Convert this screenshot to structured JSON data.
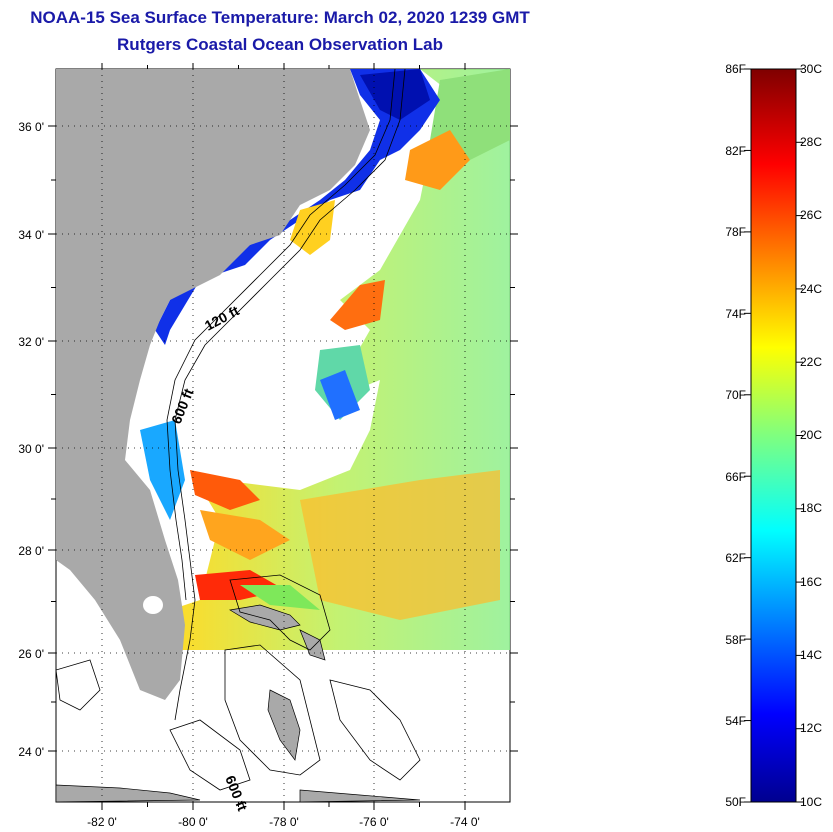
{
  "map": {
    "title": "NOAA-15 Sea Surface Temperature:  March 02, 2020 1239 GMT",
    "subtitle": "Rutgers Coastal Ocean Observation Lab",
    "lon_ticks": [
      "-82 0'",
      "-80 0'",
      "-78 0'",
      "-76 0'",
      "-74 0'"
    ],
    "lat_ticks": [
      "36 0'",
      "34 0'",
      "32 0'",
      "30 0'",
      "28 0'",
      "26 0'",
      "24 0'"
    ],
    "contour_labels": [
      "120 ft",
      "600 ft",
      "600 ft"
    ],
    "extent": {
      "lon_min": -83.0,
      "lon_max": -73.0,
      "lat_min": 23.0,
      "lat_max": 37.0
    },
    "colors": {
      "land": "#a9a9a9",
      "cloud_mask": "#ffffff",
      "title_blue": "#1a1aa8",
      "grid": "#000000"
    }
  },
  "colorbar": {
    "f_labels": [
      "86F",
      "82F",
      "78F",
      "74F",
      "70F",
      "66F",
      "62F",
      "58F",
      "54F",
      "50F"
    ],
    "c_labels": [
      "30C",
      "28C",
      "26C",
      "24C",
      "22C",
      "20C",
      "18C",
      "16C",
      "14C",
      "12C",
      "10C"
    ],
    "range_c": [
      10,
      30
    ],
    "range_f": [
      50,
      86
    ],
    "colormap": "jet"
  }
}
